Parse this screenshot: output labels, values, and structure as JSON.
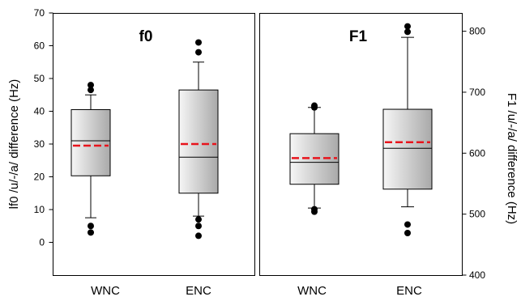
{
  "chart_data": [
    {
      "type": "box",
      "title": "f0",
      "ylabel": "lf0 /u/-/a/ difference (Hz)",
      "xlabel": "",
      "ylim": [
        -10,
        70
      ],
      "yticks": [
        0,
        10,
        20,
        30,
        40,
        50,
        60,
        70
      ],
      "axis_side": "left",
      "mean_line_color": "#e8141c",
      "categories": [
        "WNC",
        "ENC"
      ],
      "boxes": [
        {
          "category": "WNC",
          "whisker_low": 7.5,
          "q1": 20.3,
          "median": 31,
          "q3": 40.5,
          "whisker_high": 45,
          "mean": 29.5,
          "outliers": [
            3,
            5,
            46.5,
            48
          ]
        },
        {
          "category": "ENC",
          "whisker_low": 8,
          "q1": 15,
          "median": 26,
          "q3": 46.5,
          "whisker_high": 55,
          "mean": 30,
          "outliers": [
            2,
            5,
            7,
            58,
            61
          ]
        }
      ]
    },
    {
      "type": "box",
      "title": "F1",
      "ylabel": "F1 /u/-/a/ difference (Hz)",
      "xlabel": "",
      "ylim": [
        400,
        830
      ],
      "yticks": [
        400,
        500,
        600,
        700,
        800
      ],
      "axis_side": "right",
      "mean_line_color": "#e8141c",
      "categories": [
        "WNC",
        "ENC"
      ],
      "boxes": [
        {
          "category": "WNC",
          "whisker_low": 510,
          "q1": 549,
          "median": 585,
          "q3": 632,
          "whisker_high": 675,
          "mean": 592,
          "outliers": [
            504,
            508,
            675,
            678
          ]
        },
        {
          "category": "ENC",
          "whisker_low": 512,
          "q1": 541,
          "median": 608,
          "q3": 672,
          "whisker_high": 790,
          "mean": 618,
          "outliers": [
            469,
            483,
            799,
            808
          ]
        }
      ]
    }
  ]
}
